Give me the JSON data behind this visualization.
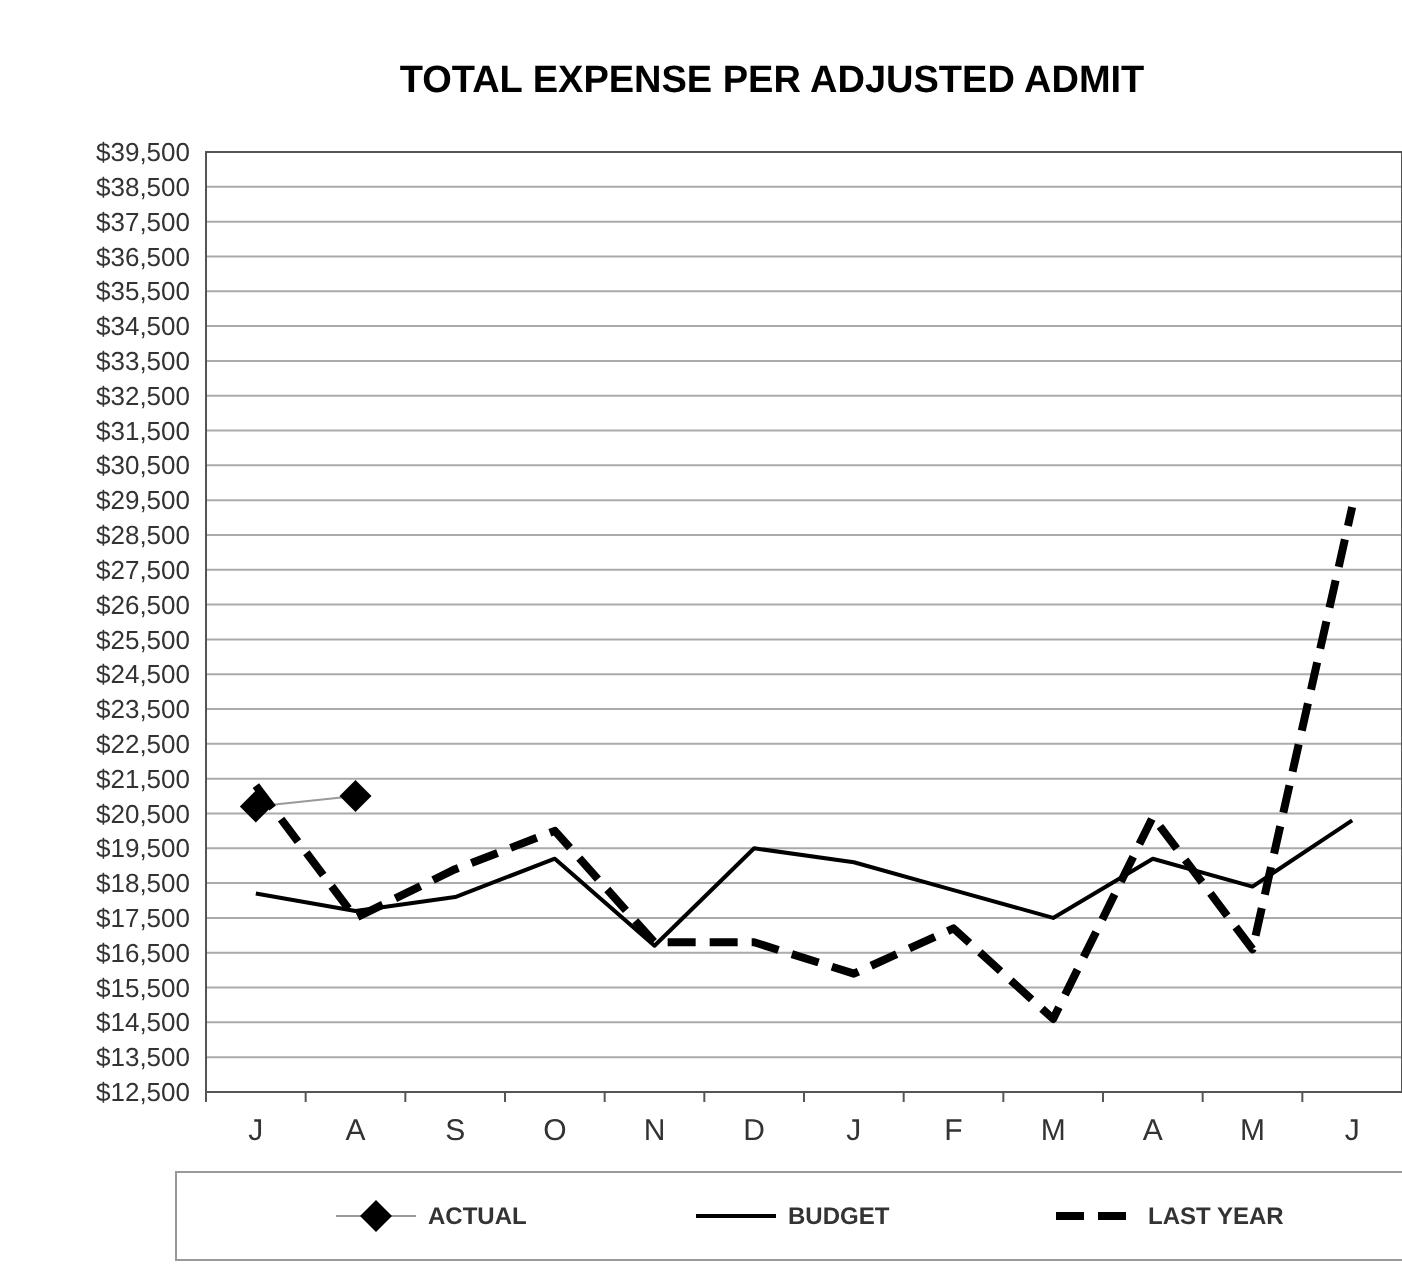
{
  "chart_data": {
    "type": "line",
    "title": "TOTAL EXPENSE PER ADJUSTED ADMIT",
    "categories": [
      "J",
      "A",
      "S",
      "O",
      "N",
      "D",
      "J",
      "F",
      "M",
      "A",
      "M",
      "J"
    ],
    "series": [
      {
        "name": "ACTUAL",
        "color": "#000000",
        "marker": "diamond",
        "line_style": "solid",
        "values": [
          20700,
          21000,
          null,
          null,
          null,
          null,
          null,
          null,
          null,
          null,
          null,
          null
        ]
      },
      {
        "name": "BUDGET",
        "color": "#000000",
        "marker": "none",
        "line_style": "solid",
        "values": [
          18200,
          17700,
          18100,
          19200,
          16700,
          19500,
          19100,
          18300,
          17500,
          19200,
          18400,
          20300
        ]
      },
      {
        "name": "LAST YEAR",
        "color": "#000000",
        "marker": "none",
        "line_style": "dashed",
        "values": [
          21300,
          17500,
          18900,
          20000,
          16800,
          16800,
          15900,
          17200,
          14600,
          20400,
          16600,
          29300
        ]
      }
    ],
    "ylim": [
      12500,
      39500
    ],
    "yticks": [
      {
        "value": 12500,
        "label": "$12,500"
      },
      {
        "value": 13500,
        "label": "$13,500"
      },
      {
        "value": 14500,
        "label": "$14,500"
      },
      {
        "value": 15500,
        "label": "$15,500"
      },
      {
        "value": 16500,
        "label": "$16,500"
      },
      {
        "value": 17500,
        "label": "$17,500"
      },
      {
        "value": 18500,
        "label": "$18,500"
      },
      {
        "value": 19500,
        "label": "$19,500"
      },
      {
        "value": 20500,
        "label": "$20,500"
      },
      {
        "value": 21500,
        "label": "$21,500"
      },
      {
        "value": 22500,
        "label": "$22,500"
      },
      {
        "value": 23500,
        "label": "$23,500"
      },
      {
        "value": 24500,
        "label": "$24,500"
      },
      {
        "value": 25500,
        "label": "$25,500"
      },
      {
        "value": 26500,
        "label": "$26,500"
      },
      {
        "value": 27500,
        "label": "$27,500"
      },
      {
        "value": 28500,
        "label": "$28,500"
      },
      {
        "value": 29500,
        "label": "$29,500"
      },
      {
        "value": 30500,
        "label": "$30,500"
      },
      {
        "value": 31500,
        "label": "$31,500"
      },
      {
        "value": 32500,
        "label": "$32,500"
      },
      {
        "value": 33500,
        "label": "$33,500"
      },
      {
        "value": 34500,
        "label": "$34,500"
      },
      {
        "value": 35500,
        "label": "$35,500"
      },
      {
        "value": 36500,
        "label": "$36,500"
      },
      {
        "value": 37500,
        "label": "$37,500"
      },
      {
        "value": 38500,
        "label": "$38,500"
      },
      {
        "value": 39500,
        "label": "$39,500"
      }
    ],
    "grid": "y",
    "legend": "bottom"
  }
}
